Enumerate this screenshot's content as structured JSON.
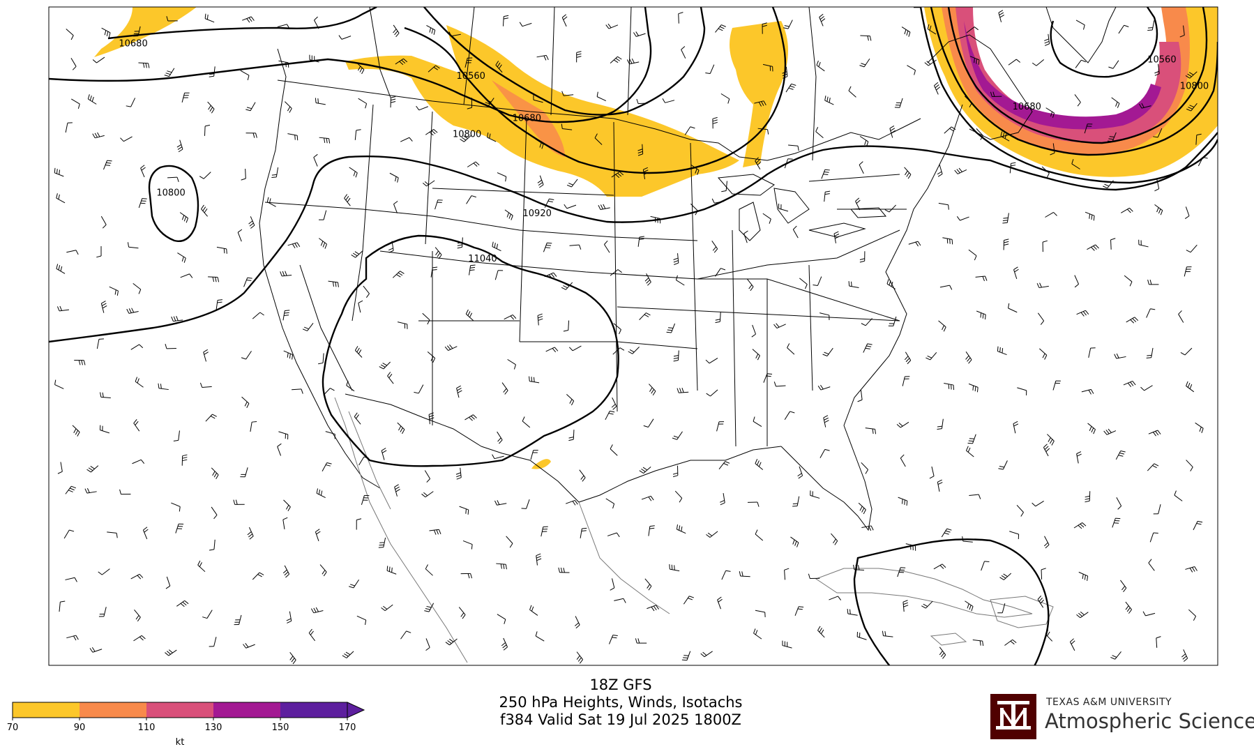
{
  "title": {
    "line1": "18Z GFS",
    "line2": "250 hPa Heights, Winds, Isotachs",
    "line3": "f384 Valid Sat 19 Jul 2025 1800Z"
  },
  "colorbar": {
    "ticks": [
      "70",
      "90",
      "110",
      "130",
      "150",
      "170"
    ],
    "unit": "kt",
    "colors": [
      "#fcc72a",
      "#f88a4b",
      "#d9507a",
      "#a31993",
      "#5d1f9e"
    ],
    "extend": "max"
  },
  "contour_labels": [
    {
      "text": "10680",
      "lon": -133.5,
      "lat": 52.3
    },
    {
      "text": "10560",
      "lon": -107.5,
      "lat": 50.1
    },
    {
      "text": "10680",
      "lon": -103.2,
      "lat": 47.2
    },
    {
      "text": "10800",
      "lon": -107.8,
      "lat": 46.1
    },
    {
      "text": "10800",
      "lon": -130.6,
      "lat": 42.1
    },
    {
      "text": "10920",
      "lon": -102.4,
      "lat": 40.7
    },
    {
      "text": "11040",
      "lon": -106.6,
      "lat": 37.6
    },
    {
      "text": "10560",
      "lon": -54.3,
      "lat": 51.2
    },
    {
      "text": "10800",
      "lon": -51.8,
      "lat": 49.4
    },
    {
      "text": "10680",
      "lon": -64.7,
      "lat": 48.0
    }
  ],
  "logo": {
    "monogram": "ATM",
    "university": "TEXAS A&M UNIVERSITY",
    "department": "Atmospheric Sciences",
    "color": "#500000"
  }
}
